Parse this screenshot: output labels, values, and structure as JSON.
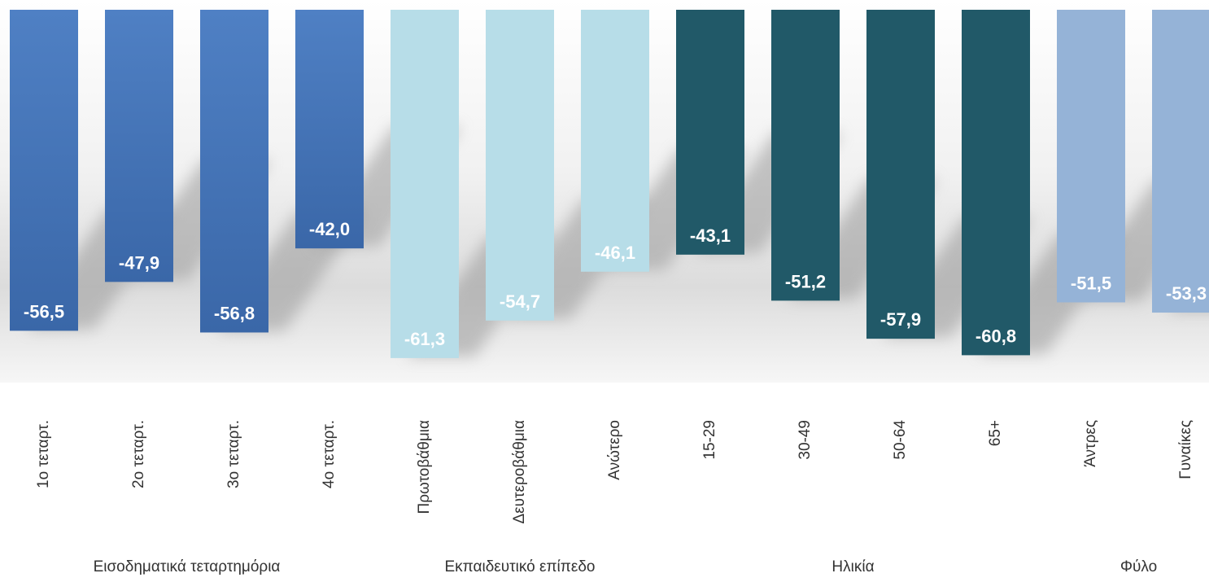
{
  "chart_data": {
    "type": "bar",
    "title": "",
    "xlabel": "",
    "ylabel": "",
    "ylim": [
      -70,
      0
    ],
    "grid": false,
    "legend": "none",
    "groups": [
      {
        "name": "Εισοδηματικά τεταρτημόρια",
        "color": "#4a7abf",
        "color_dark": "#3a66a6",
        "label_color": "#ffffff",
        "categories": [
          "1ο τεταρτ.",
          "2ο τεταρτ.",
          "3ο τεταρτ.",
          "4ο τεταρτ."
        ],
        "values": [
          -56.5,
          -47.9,
          -56.8,
          -42.0
        ],
        "labels": [
          "-56,5",
          "-47,9",
          "-56,8",
          "-42,0"
        ]
      },
      {
        "name": "Εκπαιδευτικό επίπεδο",
        "color": "#b7dde8",
        "color_dark": "#b7dde8",
        "label_color": "#ffffff",
        "categories": [
          "Πρωτοβάθμια",
          "Δευτεροβάθμια",
          "Ανώτερο"
        ],
        "values": [
          -61.3,
          -54.7,
          -46.1
        ],
        "labels": [
          "-61,3",
          "-54,7",
          "-46,1"
        ]
      },
      {
        "name": "Ηλικία",
        "color": "#215968",
        "color_dark": "#215968",
        "label_color": "#ffffff",
        "categories": [
          "15-29",
          "30-49",
          "50-64",
          "65+"
        ],
        "values": [
          -43.1,
          -51.2,
          -57.9,
          -60.8
        ],
        "labels": [
          "-43,1",
          "-51,2",
          "-57,9",
          "-60,8"
        ]
      },
      {
        "name": "Φύλο",
        "color": "#95b3d7",
        "color_dark": "#95b3d7",
        "label_color": "#ffffff",
        "categories": [
          "Άντρες",
          "Γυναίκες"
        ],
        "values": [
          -51.5,
          -53.3
        ],
        "labels": [
          "-51,5",
          "-53,3"
        ]
      }
    ]
  }
}
